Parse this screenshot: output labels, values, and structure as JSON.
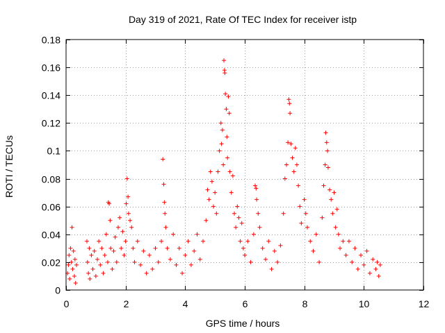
{
  "chart_data": {
    "type": "scatter",
    "title": "Day 319 of 2021, Rate Of TEC Index for receiver istp",
    "xlabel": "GPS time / hours",
    "ylabel": "ROTI / TECUs",
    "xlim": [
      0,
      12
    ],
    "ylim": [
      0,
      0.18
    ],
    "x_ticks": [
      0,
      2,
      4,
      6,
      8,
      10,
      12
    ],
    "x_tick_labels": [
      "0",
      "2",
      "4",
      "6",
      "8",
      "10",
      "12"
    ],
    "y_ticks": [
      0,
      0.02,
      0.04,
      0.06,
      0.08,
      0.1,
      0.12,
      0.14,
      0.16,
      0.18
    ],
    "y_tick_labels": [
      "0",
      "0.02",
      "0.04",
      "0.06",
      "0.08",
      "0.1",
      "0.12",
      "0.14",
      "0.16",
      "0.18"
    ],
    "grid": true,
    "marker": "+",
    "color": "#ff0000",
    "series": [
      {
        "name": "ROTI",
        "points": [
          [
            0.05,
            0.012
          ],
          [
            0.08,
            0.018
          ],
          [
            0.1,
            0.025
          ],
          [
            0.12,
            0.008
          ],
          [
            0.15,
            0.03
          ],
          [
            0.18,
            0.02
          ],
          [
            0.2,
            0.045
          ],
          [
            0.22,
            0.015
          ],
          [
            0.25,
            0.028
          ],
          [
            0.28,
            0.01
          ],
          [
            0.3,
            0.022
          ],
          [
            0.32,
            0.005
          ],
          [
            0.35,
            0.018
          ],
          [
            0.7,
            0.035
          ],
          [
            0.72,
            0.02
          ],
          [
            0.75,
            0.012
          ],
          [
            0.78,
            0.03
          ],
          [
            0.8,
            0.008
          ],
          [
            0.85,
            0.025
          ],
          [
            0.9,
            0.015
          ],
          [
            0.95,
            0.028
          ],
          [
            1.0,
            0.01
          ],
          [
            1.05,
            0.022
          ],
          [
            1.1,
            0.035
          ],
          [
            1.15,
            0.018
          ],
          [
            1.2,
            0.03
          ],
          [
            1.25,
            0.012
          ],
          [
            1.3,
            0.025
          ],
          [
            1.35,
            0.04
          ],
          [
            1.4,
            0.02
          ],
          [
            1.42,
            0.063
          ],
          [
            1.45,
            0.062
          ],
          [
            1.48,
            0.05
          ],
          [
            1.5,
            0.03
          ],
          [
            1.55,
            0.015
          ],
          [
            1.6,
            0.028
          ],
          [
            1.65,
            0.038
          ],
          [
            1.7,
            0.02
          ],
          [
            1.75,
            0.045
          ],
          [
            1.8,
            0.052
          ],
          [
            1.85,
            0.03
          ],
          [
            1.9,
            0.042
          ],
          [
            1.95,
            0.025
          ],
          [
            2.0,
            0.035
          ],
          [
            2.02,
            0.062
          ],
          [
            2.05,
            0.08
          ],
          [
            2.08,
            0.067
          ],
          [
            2.1,
            0.055
          ],
          [
            2.15,
            0.05
          ],
          [
            2.2,
            0.045
          ],
          [
            2.25,
            0.03
          ],
          [
            2.3,
            0.02
          ],
          [
            2.4,
            0.035
          ],
          [
            2.5,
            0.018
          ],
          [
            2.6,
            0.028
          ],
          [
            2.7,
            0.012
          ],
          [
            2.8,
            0.025
          ],
          [
            2.9,
            0.015
          ],
          [
            3.0,
            0.03
          ],
          [
            3.1,
            0.02
          ],
          [
            3.2,
            0.035
          ],
          [
            3.25,
            0.094
          ],
          [
            3.28,
            0.076
          ],
          [
            3.3,
            0.063
          ],
          [
            3.32,
            0.055
          ],
          [
            3.35,
            0.045
          ],
          [
            3.4,
            0.03
          ],
          [
            3.5,
            0.022
          ],
          [
            3.6,
            0.04
          ],
          [
            3.7,
            0.018
          ],
          [
            3.8,
            0.03
          ],
          [
            3.9,
            0.012
          ],
          [
            4.0,
            0.025
          ],
          [
            4.1,
            0.035
          ],
          [
            4.2,
            0.018
          ],
          [
            4.3,
            0.028
          ],
          [
            4.4,
            0.04
          ],
          [
            4.5,
            0.022
          ],
          [
            4.6,
            0.035
          ],
          [
            4.7,
            0.05
          ],
          [
            4.75,
            0.072
          ],
          [
            4.8,
            0.065
          ],
          [
            4.85,
            0.085
          ],
          [
            4.9,
            0.078
          ],
          [
            4.95,
            0.06
          ],
          [
            5.0,
            0.07
          ],
          [
            5.05,
            0.055
          ],
          [
            5.1,
            0.085
          ],
          [
            5.15,
            0.1
          ],
          [
            5.2,
            0.12
          ],
          [
            5.22,
            0.105
          ],
          [
            5.25,
            0.115
          ],
          [
            5.28,
            0.09
          ],
          [
            5.3,
            0.165
          ],
          [
            5.32,
            0.158
          ],
          [
            5.33,
            0.156
          ],
          [
            5.35,
            0.141
          ],
          [
            5.38,
            0.13
          ],
          [
            5.4,
            0.11
          ],
          [
            5.42,
            0.095
          ],
          [
            5.45,
            0.139
          ],
          [
            5.48,
            0.127
          ],
          [
            5.5,
            0.085
          ],
          [
            5.55,
            0.07
          ],
          [
            5.6,
            0.082
          ],
          [
            5.65,
            0.055
          ],
          [
            5.7,
            0.045
          ],
          [
            5.75,
            0.06
          ],
          [
            5.8,
            0.052
          ],
          [
            5.85,
            0.035
          ],
          [
            5.9,
            0.048
          ],
          [
            5.95,
            0.03
          ],
          [
            6.0,
            0.025
          ],
          [
            6.1,
            0.035
          ],
          [
            6.2,
            0.02
          ],
          [
            6.3,
            0.04
          ],
          [
            6.35,
            0.075
          ],
          [
            6.38,
            0.073
          ],
          [
            6.4,
            0.065
          ],
          [
            6.45,
            0.055
          ],
          [
            6.5,
            0.045
          ],
          [
            6.6,
            0.03
          ],
          [
            6.7,
            0.022
          ],
          [
            6.8,
            0.035
          ],
          [
            6.9,
            0.015
          ],
          [
            7.0,
            0.028
          ],
          [
            7.1,
            0.02
          ],
          [
            7.2,
            0.032
          ],
          [
            7.3,
            0.055
          ],
          [
            7.35,
            0.08
          ],
          [
            7.4,
            0.09
          ],
          [
            7.45,
            0.106
          ],
          [
            7.48,
            0.137
          ],
          [
            7.5,
            0.134
          ],
          [
            7.52,
            0.127
          ],
          [
            7.55,
            0.105
          ],
          [
            7.6,
            0.095
          ],
          [
            7.65,
            0.085
          ],
          [
            7.7,
            0.102
          ],
          [
            7.75,
            0.09
          ],
          [
            7.8,
            0.075
          ],
          [
            7.85,
            0.06
          ],
          [
            7.9,
            0.048
          ],
          [
            8.0,
            0.065
          ],
          [
            8.05,
            0.055
          ],
          [
            8.1,
            0.045
          ],
          [
            8.2,
            0.035
          ],
          [
            8.3,
            0.028
          ],
          [
            8.4,
            0.04
          ],
          [
            8.5,
            0.02
          ],
          [
            8.6,
            0.052
          ],
          [
            8.65,
            0.075
          ],
          [
            8.7,
            0.09
          ],
          [
            8.72,
            0.113
          ],
          [
            8.75,
            0.106
          ],
          [
            8.78,
            0.1
          ],
          [
            8.8,
            0.088
          ],
          [
            8.85,
            0.072
          ],
          [
            8.9,
            0.065
          ],
          [
            8.95,
            0.055
          ],
          [
            9.0,
            0.07
          ],
          [
            9.05,
            0.045
          ],
          [
            9.1,
            0.058
          ],
          [
            9.15,
            0.04
          ],
          [
            9.2,
            0.03
          ],
          [
            9.3,
            0.035
          ],
          [
            9.4,
            0.025
          ],
          [
            9.5,
            0.035
          ],
          [
            9.6,
            0.02
          ],
          [
            9.7,
            0.03
          ],
          [
            9.8,
            0.015
          ],
          [
            9.9,
            0.025
          ],
          [
            10.0,
            0.018
          ],
          [
            10.1,
            0.028
          ],
          [
            10.2,
            0.012
          ],
          [
            10.3,
            0.022
          ],
          [
            10.4,
            0.015
          ],
          [
            10.45,
            0.02
          ],
          [
            10.5,
            0.01
          ],
          [
            10.55,
            0.018
          ]
        ]
      }
    ]
  }
}
